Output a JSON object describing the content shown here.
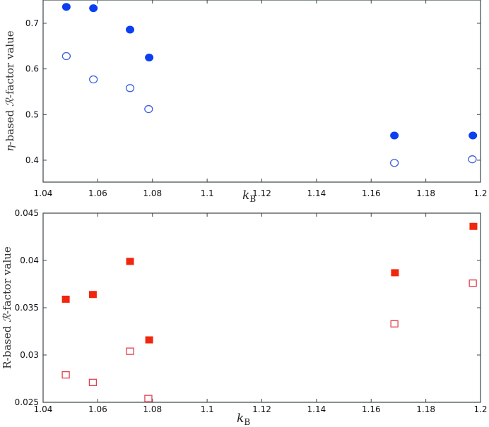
{
  "chart_data": [
    {
      "type": "scatter",
      "title": "",
      "xlabel": "k_B",
      "ylabel": "η-based R-factor value",
      "xlim": [
        1.04,
        1.2
      ],
      "ylim": [
        0.352,
        0.751
      ],
      "xticks": [
        "1.04",
        "1.06",
        "1.08",
        "1.1",
        "1.12",
        "1.14",
        "1.16",
        "1.18",
        "1.2"
      ],
      "yticks": [
        "0.4",
        "0.5",
        "0.6",
        "0.7"
      ],
      "grid": false,
      "legend": null,
      "series": [
        {
          "name": "filled circles",
          "marker": "filled-circle",
          "color": "#0b3ff0",
          "x": [
            1.0485,
            1.0584,
            1.0718,
            1.0788,
            1.1685,
            1.1972
          ],
          "y": [
            0.736,
            0.733,
            0.686,
            0.625,
            0.454,
            0.454
          ]
        },
        {
          "name": "open circles",
          "marker": "open-circle",
          "color": "#3a5fe0",
          "x": [
            1.0485,
            1.0584,
            1.0718,
            1.0786,
            1.1685,
            1.197
          ],
          "y": [
            0.628,
            0.577,
            0.558,
            0.512,
            0.394,
            0.402
          ]
        }
      ]
    },
    {
      "type": "scatter",
      "title": "",
      "xlabel": "k_B",
      "ylabel": "R-based R-factor value",
      "xlim": [
        1.04,
        1.2
      ],
      "ylim": [
        0.025,
        0.045
      ],
      "xticks": [
        "1.04",
        "1.06",
        "1.08",
        "1.1",
        "1.12",
        "1.14",
        "1.16",
        "1.18",
        "1.2"
      ],
      "yticks": [
        "0.025",
        "0.03",
        "0.035",
        "0.04",
        "0.045"
      ],
      "grid": false,
      "legend": null,
      "series": [
        {
          "name": "filled squares",
          "marker": "filled-square",
          "color": "#f0260e",
          "x": [
            1.0483,
            1.0582,
            1.0718,
            1.0788,
            1.1687,
            1.1974
          ],
          "y": [
            0.0359,
            0.0364,
            0.0399,
            0.0316,
            0.0387,
            0.0436
          ]
        },
        {
          "name": "open squares",
          "marker": "open-square",
          "color": "#e0404e",
          "x": [
            1.0483,
            1.0582,
            1.0718,
            1.0785,
            1.1685,
            1.1972
          ],
          "y": [
            0.0279,
            0.0271,
            0.0304,
            0.0254,
            0.0333,
            0.0376
          ]
        }
      ]
    }
  ],
  "labels": {
    "top_ylabel_prefix": "η",
    "top_ylabel_rest": "-based ",
    "script_R": "ℛ",
    "ylabel_suffix": "-factor value",
    "bottom_ylabel_prefix": "R-based ",
    "xlabel_k": "k",
    "xlabel_sub": "B"
  }
}
